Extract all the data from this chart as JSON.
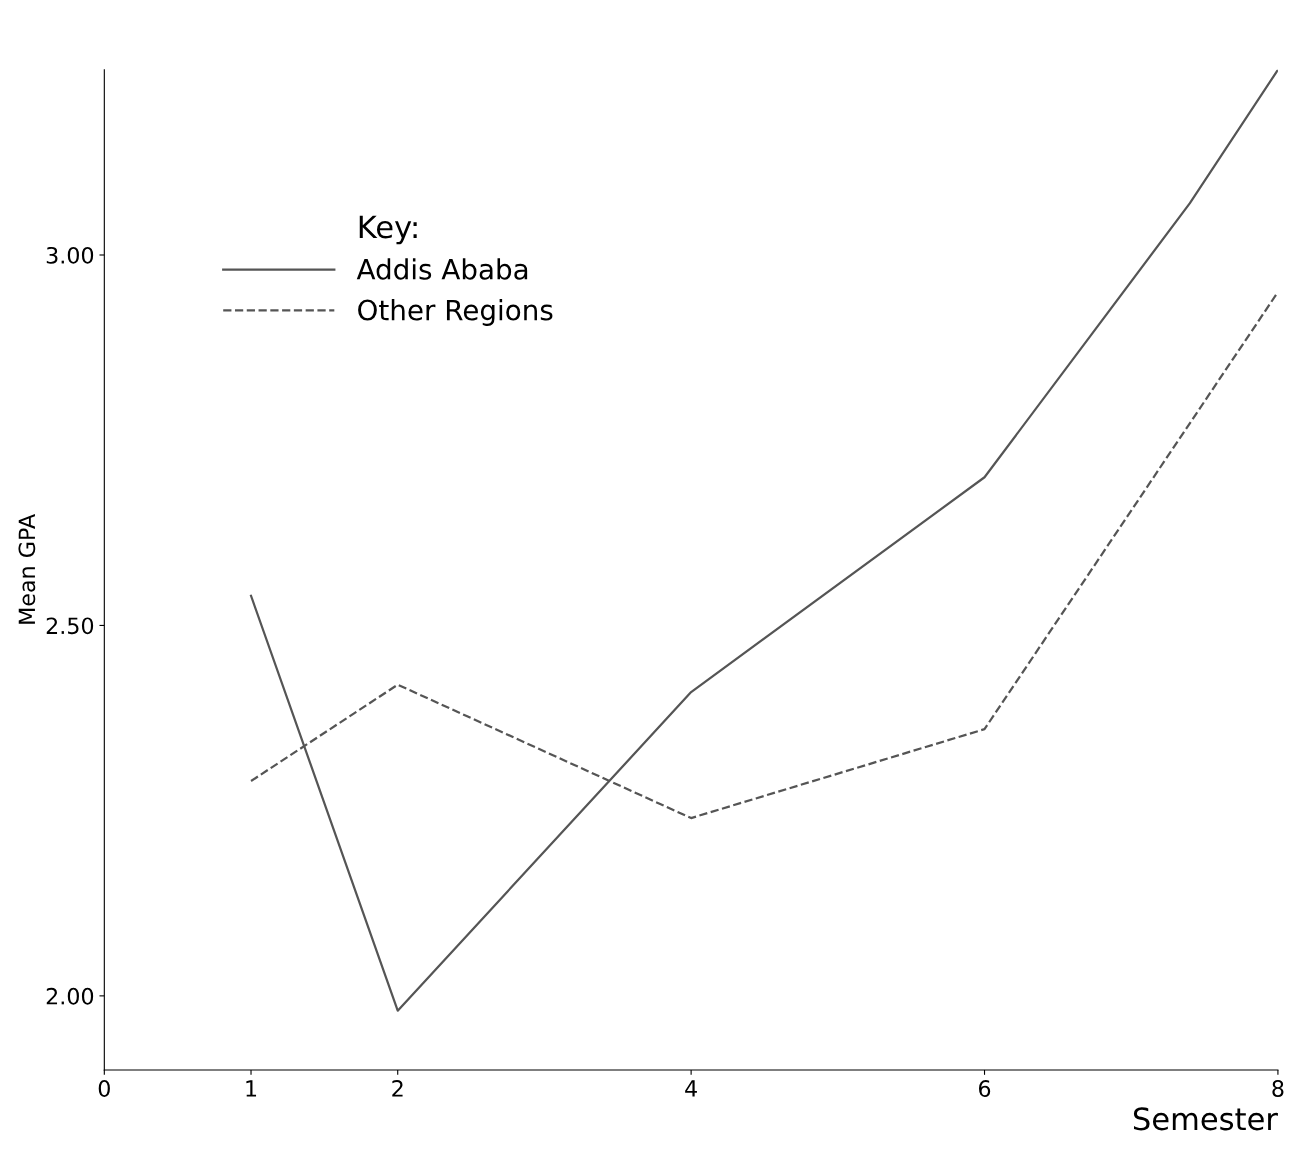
{
  "chart_data": {
    "type": "line",
    "xlabel": "Semester",
    "ylabel": "Mean GPA",
    "legend_title": "Key:",
    "xlim": [
      0,
      8
    ],
    "xticks": [
      0,
      1,
      2,
      4,
      6,
      8
    ],
    "ylim": [
      1.9,
      3.25
    ],
    "yticks": [
      {
        "value": 2.0,
        "label": "2.00"
      },
      {
        "value": 2.5,
        "label": "2.50"
      },
      {
        "value": 3.0,
        "label": "3.00"
      }
    ],
    "grid": false,
    "legend": "top left",
    "marker": "none",
    "series": [
      {
        "name": "Addis Ababa",
        "color": "#555555",
        "line_style": "solid",
        "x": [
          1,
          2,
          4,
          6,
          7.4,
          8
        ],
        "values": [
          2.54,
          1.98,
          2.41,
          2.7,
          3.07,
          3.25
        ]
      },
      {
        "name": "Other Regions",
        "color": "#555555",
        "line_style": "dashed",
        "x": [
          1,
          2,
          4,
          6,
          8
        ],
        "values": [
          2.29,
          2.42,
          2.24,
          2.36,
          2.95
        ]
      }
    ]
  }
}
